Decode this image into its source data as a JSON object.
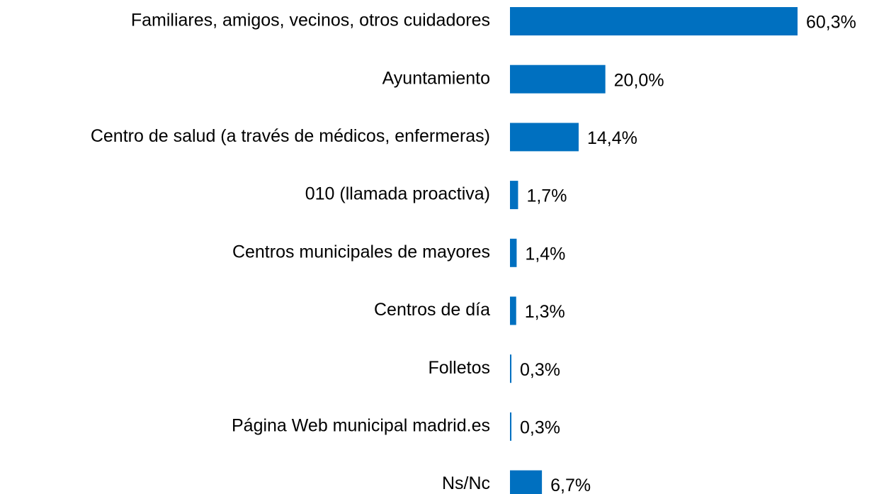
{
  "chart_data": {
    "type": "bar",
    "orientation": "horizontal",
    "categories": [
      "Familiares, amigos, vecinos, otros cuidadores",
      "Ayuntamiento",
      "Centro de salud (a través de médicos, enfermeras)",
      "010 (llamada proactiva)",
      "Centros municipales de mayores",
      "Centros de día",
      "Folletos",
      "Página Web municipal madrid.es",
      "Ns/Nc"
    ],
    "values": [
      60.3,
      20.0,
      14.4,
      1.7,
      1.4,
      1.3,
      0.3,
      0.3,
      6.7
    ],
    "value_labels": [
      "60,3%",
      "20,0%",
      "14,4%",
      "1,7%",
      "1,4%",
      "1,3%",
      "0,3%",
      "0,3%",
      "6,7%"
    ],
    "color": "#0070c0"
  }
}
